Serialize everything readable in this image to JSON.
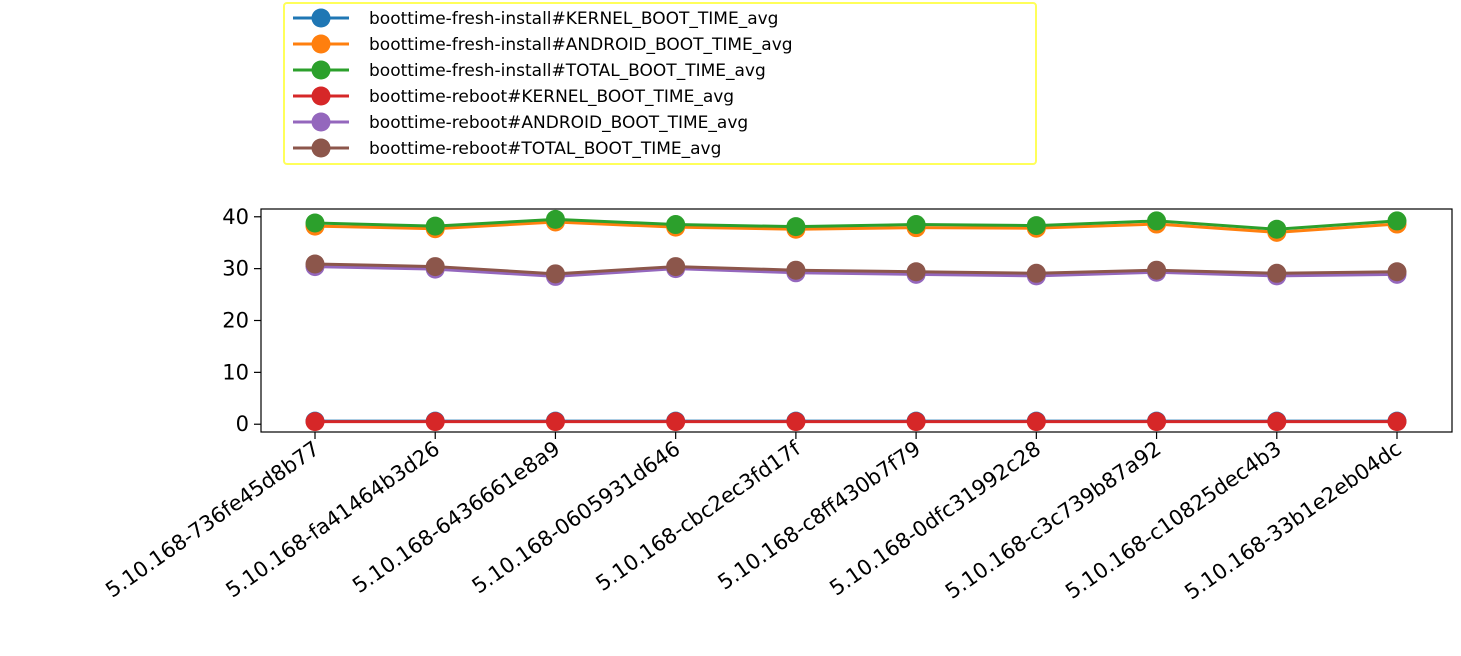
{
  "chart_data": {
    "type": "line",
    "title": "",
    "xlabel": "",
    "ylabel": "",
    "categories": [
      "5.10.168-736fe45d8b77",
      "5.10.168-fa41464b3d26",
      "5.10.168-6436661e8a9",
      "5.10.168-0605931d646",
      "5.10.168-cbc2ec3fd17f",
      "5.10.168-c8ff430b7f79",
      "5.10.168-0dfc31992c28",
      "5.10.168-c3c739b87a92",
      "5.10.168-c10825dec4b3",
      "5.10.168-33b1e2eb04dc"
    ],
    "yticks": [
      0,
      10,
      20,
      30,
      40
    ],
    "ylim": [
      -1.5,
      41.5
    ],
    "grid": false,
    "legend_position": "top-left (above plot)",
    "series": [
      {
        "name": "boottime-fresh-install#KERNEL_BOOT_TIME_avg",
        "color": "#1f77b4",
        "values": [
          0.6,
          0.6,
          0.6,
          0.6,
          0.6,
          0.6,
          0.6,
          0.6,
          0.6,
          0.6
        ]
      },
      {
        "name": "boottime-fresh-install#ANDROID_BOOT_TIME_avg",
        "color": "#ff7f0e",
        "values": [
          38.2,
          37.7,
          39.0,
          38.0,
          37.6,
          37.9,
          37.8,
          38.6,
          37.0,
          38.6
        ]
      },
      {
        "name": "boottime-fresh-install#TOTAL_BOOT_TIME_avg",
        "color": "#2ca02c",
        "values": [
          38.8,
          38.2,
          39.5,
          38.5,
          38.1,
          38.5,
          38.3,
          39.2,
          37.6,
          39.2
        ]
      },
      {
        "name": "boottime-reboot#KERNEL_BOOT_TIME_avg",
        "color": "#d62728",
        "values": [
          0.5,
          0.5,
          0.5,
          0.5,
          0.5,
          0.5,
          0.5,
          0.5,
          0.5,
          0.5
        ]
      },
      {
        "name": "boottime-reboot#ANDROID_BOOT_TIME_avg",
        "color": "#9467bd",
        "values": [
          30.4,
          29.9,
          28.5,
          30.0,
          29.2,
          28.9,
          28.6,
          29.3,
          28.6,
          28.9
        ]
      },
      {
        "name": "boottime-reboot#TOTAL_BOOT_TIME_avg",
        "color": "#8c564b",
        "values": [
          30.9,
          30.4,
          29.0,
          30.4,
          29.7,
          29.4,
          29.1,
          29.7,
          29.1,
          29.4
        ]
      }
    ]
  }
}
